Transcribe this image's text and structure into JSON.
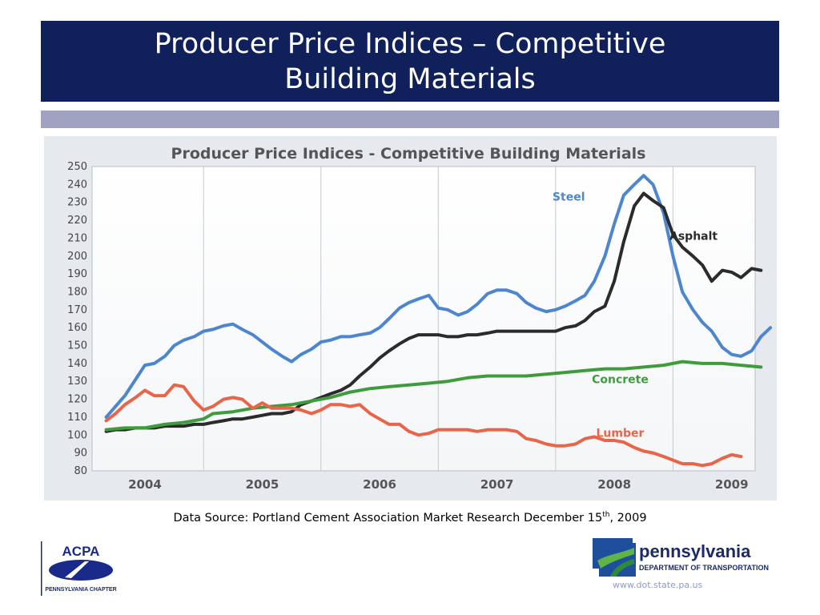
{
  "slide": {
    "title": "Producer Price Indices – Competitive Building Materials",
    "source_prefix": "Data Source: Portland Cement Association Market Research December 15",
    "source_sup": "th",
    "source_suffix": ", 2009"
  },
  "footer": {
    "acpa_name": "ACPA",
    "acpa_chapter": "PENNSYLVANIA CHAPTER",
    "penn_name": "pennsylvania",
    "penn_dept": "DEPARTMENT OF TRANSPORTATION",
    "url": "www.dot.state.pa.us"
  },
  "colors": {
    "title_bg": "#10205a",
    "sub_bar": "#9fa2c0",
    "steel": "#4d86cf",
    "asphalt": "#2b2b2b",
    "concrete": "#3f9c3c",
    "lumber": "#e8654a"
  },
  "chart_data": {
    "type": "line",
    "title": "Producer Price Indices - Competitive Building Materials",
    "ylim": [
      80,
      250
    ],
    "yticks": [
      80,
      90,
      100,
      110,
      120,
      130,
      140,
      150,
      160,
      170,
      180,
      190,
      200,
      210,
      220,
      230,
      240,
      250
    ],
    "xlim": [
      2003.8,
      2009.45
    ],
    "xtick_labels": [
      {
        "label": "2004",
        "at": 2004.25
      },
      {
        "label": "2005",
        "at": 2005.25
      },
      {
        "label": "2006",
        "at": 2006.25
      },
      {
        "label": "2007",
        "at": 2007.25
      },
      {
        "label": "2008",
        "at": 2008.25
      },
      {
        "label": "2009",
        "at": 2009.25
      }
    ],
    "year_dividers": [
      2004.75,
      2005.75,
      2006.75,
      2007.75,
      2008.75
    ],
    "grid": false,
    "series": [
      {
        "name": "Steel",
        "color": "#4d86cf",
        "points": [
          [
            2003.92,
            110
          ],
          [
            2004.0,
            116
          ],
          [
            2004.08,
            122
          ],
          [
            2004.17,
            131
          ],
          [
            2004.25,
            139
          ],
          [
            2004.33,
            140
          ],
          [
            2004.42,
            144
          ],
          [
            2004.5,
            150
          ],
          [
            2004.58,
            153
          ],
          [
            2004.67,
            155
          ],
          [
            2004.75,
            158
          ],
          [
            2004.83,
            159
          ],
          [
            2004.92,
            161
          ],
          [
            2005.0,
            162
          ],
          [
            2005.08,
            159
          ],
          [
            2005.17,
            156
          ],
          [
            2005.25,
            152
          ],
          [
            2005.33,
            148
          ],
          [
            2005.42,
            144
          ],
          [
            2005.5,
            141
          ],
          [
            2005.58,
            145
          ],
          [
            2005.67,
            148
          ],
          [
            2005.75,
            152
          ],
          [
            2005.83,
            153
          ],
          [
            2005.92,
            155
          ],
          [
            2006.0,
            155
          ],
          [
            2006.08,
            156
          ],
          [
            2006.17,
            157
          ],
          [
            2006.25,
            160
          ],
          [
            2006.33,
            165
          ],
          [
            2006.42,
            171
          ],
          [
            2006.5,
            174
          ],
          [
            2006.58,
            176
          ],
          [
            2006.67,
            178
          ],
          [
            2006.75,
            171
          ],
          [
            2006.83,
            170
          ],
          [
            2006.92,
            167
          ],
          [
            2007.0,
            169
          ],
          [
            2007.08,
            173
          ],
          [
            2007.17,
            179
          ],
          [
            2007.25,
            181
          ],
          [
            2007.33,
            181
          ],
          [
            2007.42,
            179
          ],
          [
            2007.5,
            174
          ],
          [
            2007.58,
            171
          ],
          [
            2007.67,
            169
          ],
          [
            2007.75,
            170
          ],
          [
            2007.83,
            172
          ],
          [
            2007.92,
            175
          ],
          [
            2008.0,
            178
          ],
          [
            2008.08,
            186
          ],
          [
            2008.17,
            200
          ],
          [
            2008.25,
            218
          ],
          [
            2008.33,
            234
          ],
          [
            2008.42,
            240
          ],
          [
            2008.5,
            245
          ],
          [
            2008.58,
            240
          ],
          [
            2008.67,
            224
          ],
          [
            2008.75,
            200
          ],
          [
            2008.83,
            180
          ],
          [
            2008.92,
            170
          ],
          [
            2009.0,
            163
          ],
          [
            2009.08,
            158
          ],
          [
            2009.17,
            149
          ],
          [
            2009.25,
            145
          ],
          [
            2009.33,
            144
          ],
          [
            2009.42,
            147
          ],
          [
            2009.5,
            155
          ],
          [
            2009.58,
            160
          ]
        ]
      },
      {
        "name": "Asphalt",
        "color": "#2b2b2b",
        "points": [
          [
            2003.92,
            102
          ],
          [
            2004.0,
            103
          ],
          [
            2004.08,
            103
          ],
          [
            2004.17,
            104
          ],
          [
            2004.25,
            104
          ],
          [
            2004.33,
            104
          ],
          [
            2004.42,
            105
          ],
          [
            2004.5,
            105
          ],
          [
            2004.58,
            105
          ],
          [
            2004.67,
            106
          ],
          [
            2004.75,
            106
          ],
          [
            2004.83,
            107
          ],
          [
            2004.92,
            108
          ],
          [
            2005.0,
            109
          ],
          [
            2005.08,
            109
          ],
          [
            2005.17,
            110
          ],
          [
            2005.25,
            111
          ],
          [
            2005.33,
            112
          ],
          [
            2005.42,
            112
          ],
          [
            2005.5,
            113
          ],
          [
            2005.58,
            117
          ],
          [
            2005.67,
            119
          ],
          [
            2005.75,
            121
          ],
          [
            2005.83,
            123
          ],
          [
            2005.92,
            125
          ],
          [
            2006.0,
            128
          ],
          [
            2006.08,
            133
          ],
          [
            2006.17,
            138
          ],
          [
            2006.25,
            143
          ],
          [
            2006.33,
            147
          ],
          [
            2006.42,
            151
          ],
          [
            2006.5,
            154
          ],
          [
            2006.58,
            156
          ],
          [
            2006.67,
            156
          ],
          [
            2006.75,
            156
          ],
          [
            2006.83,
            155
          ],
          [
            2006.92,
            155
          ],
          [
            2007.0,
            156
          ],
          [
            2007.08,
            156
          ],
          [
            2007.17,
            157
          ],
          [
            2007.25,
            158
          ],
          [
            2007.33,
            158
          ],
          [
            2007.42,
            158
          ],
          [
            2007.5,
            158
          ],
          [
            2007.58,
            158
          ],
          [
            2007.67,
            158
          ],
          [
            2007.75,
            158
          ],
          [
            2007.83,
            160
          ],
          [
            2007.92,
            161
          ],
          [
            2008.0,
            164
          ],
          [
            2008.08,
            169
          ],
          [
            2008.17,
            172
          ],
          [
            2008.25,
            186
          ],
          [
            2008.33,
            208
          ],
          [
            2008.42,
            228
          ],
          [
            2008.5,
            235
          ],
          [
            2008.58,
            231
          ],
          [
            2008.67,
            227
          ],
          [
            2008.75,
            212
          ],
          [
            2008.83,
            205
          ],
          [
            2008.92,
            200
          ],
          [
            2009.0,
            195
          ],
          [
            2009.08,
            186
          ],
          [
            2009.17,
            192
          ],
          [
            2009.25,
            191
          ],
          [
            2009.33,
            188
          ],
          [
            2009.42,
            193
          ],
          [
            2009.5,
            192
          ]
        ]
      },
      {
        "name": "Concrete",
        "color": "#3f9c3c",
        "points": [
          [
            2003.92,
            103
          ],
          [
            2004.08,
            104
          ],
          [
            2004.25,
            104
          ],
          [
            2004.42,
            106
          ],
          [
            2004.58,
            107
          ],
          [
            2004.75,
            109
          ],
          [
            2004.83,
            112
          ],
          [
            2005.0,
            113
          ],
          [
            2005.17,
            115
          ],
          [
            2005.33,
            116
          ],
          [
            2005.5,
            117
          ],
          [
            2005.67,
            119
          ],
          [
            2005.83,
            121
          ],
          [
            2006.0,
            124
          ],
          [
            2006.17,
            126
          ],
          [
            2006.33,
            127
          ],
          [
            2006.5,
            128
          ],
          [
            2006.67,
            129
          ],
          [
            2006.83,
            130
          ],
          [
            2007.0,
            132
          ],
          [
            2007.17,
            133
          ],
          [
            2007.33,
            133
          ],
          [
            2007.5,
            133
          ],
          [
            2007.67,
            134
          ],
          [
            2007.83,
            135
          ],
          [
            2008.0,
            136
          ],
          [
            2008.17,
            137
          ],
          [
            2008.33,
            137
          ],
          [
            2008.5,
            138
          ],
          [
            2008.67,
            139
          ],
          [
            2008.83,
            141
          ],
          [
            2009.0,
            140
          ],
          [
            2009.17,
            140
          ],
          [
            2009.33,
            139
          ],
          [
            2009.5,
            138
          ]
        ]
      },
      {
        "name": "Lumber",
        "color": "#e8654a",
        "points": [
          [
            2003.92,
            108
          ],
          [
            2004.0,
            112
          ],
          [
            2004.08,
            117
          ],
          [
            2004.17,
            121
          ],
          [
            2004.25,
            125
          ],
          [
            2004.33,
            122
          ],
          [
            2004.42,
            122
          ],
          [
            2004.5,
            128
          ],
          [
            2004.58,
            127
          ],
          [
            2004.67,
            119
          ],
          [
            2004.75,
            114
          ],
          [
            2004.83,
            116
          ],
          [
            2004.92,
            120
          ],
          [
            2005.0,
            121
          ],
          [
            2005.08,
            120
          ],
          [
            2005.17,
            115
          ],
          [
            2005.25,
            118
          ],
          [
            2005.33,
            115
          ],
          [
            2005.42,
            115
          ],
          [
            2005.5,
            115
          ],
          [
            2005.58,
            114
          ],
          [
            2005.67,
            112
          ],
          [
            2005.75,
            114
          ],
          [
            2005.83,
            117
          ],
          [
            2005.92,
            117
          ],
          [
            2006.0,
            116
          ],
          [
            2006.08,
            117
          ],
          [
            2006.17,
            112
          ],
          [
            2006.25,
            109
          ],
          [
            2006.33,
            106
          ],
          [
            2006.42,
            106
          ],
          [
            2006.5,
            102
          ],
          [
            2006.58,
            100
          ],
          [
            2006.67,
            101
          ],
          [
            2006.75,
            103
          ],
          [
            2006.83,
            103
          ],
          [
            2006.92,
            103
          ],
          [
            2007.0,
            103
          ],
          [
            2007.08,
            102
          ],
          [
            2007.17,
            103
          ],
          [
            2007.25,
            103
          ],
          [
            2007.33,
            103
          ],
          [
            2007.42,
            102
          ],
          [
            2007.5,
            98
          ],
          [
            2007.58,
            97
          ],
          [
            2007.67,
            95
          ],
          [
            2007.75,
            94
          ],
          [
            2007.83,
            94
          ],
          [
            2007.92,
            95
          ],
          [
            2008.0,
            98
          ],
          [
            2008.08,
            99
          ],
          [
            2008.17,
            97
          ],
          [
            2008.25,
            97
          ],
          [
            2008.33,
            96
          ],
          [
            2008.42,
            93
          ],
          [
            2008.5,
            91
          ],
          [
            2008.58,
            90
          ],
          [
            2008.67,
            88
          ],
          [
            2008.75,
            86
          ],
          [
            2008.83,
            84
          ],
          [
            2008.92,
            84
          ],
          [
            2009.0,
            83
          ],
          [
            2009.08,
            84
          ],
          [
            2009.17,
            87
          ],
          [
            2009.25,
            89
          ],
          [
            2009.33,
            88
          ]
        ]
      }
    ]
  }
}
